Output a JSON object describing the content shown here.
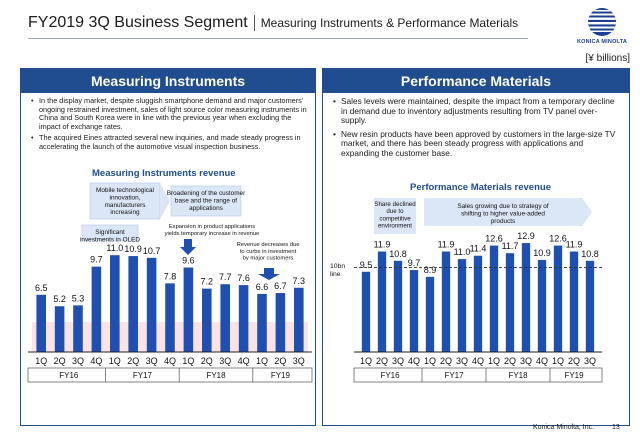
{
  "header": {
    "title": "FY2019 3Q Business Segment",
    "subtitle": "Measuring Instruments & Performance Materials",
    "logo_text": "KONICA MINOLTA",
    "unit": "[¥ billions]"
  },
  "left_panel": {
    "heading": "Measuring  Instruments",
    "bullets": [
      "In the display market, despite sluggish smartphone demand and major customers' ongoing restrained investment, sales of light source color measuring instruments in China and South Korea were in line with the previous year when excluding the impact of exchange rates.",
      "The acquired Eines attracted several new inquiries, and made steady progress in accelerating the launch of the automotive visual inspection business."
    ]
  },
  "right_panel": {
    "heading": "Performance Materials",
    "bullets": [
      "Sales levels were maintained, despite the impact from a temporary decline in demand due to inventory adjustments resulting from TV panel over-supply.",
      "New resin products have been approved by customers in the large-size TV market, and there has been steady progress with applications and expanding the customer base."
    ]
  },
  "chart_data": [
    {
      "type": "bar",
      "title": "Measuring Instruments revenue",
      "categories": [
        "1Q",
        "2Q",
        "3Q",
        "4Q",
        "1Q",
        "2Q",
        "3Q",
        "4Q",
        "1Q",
        "2Q",
        "3Q",
        "4Q",
        "1Q",
        "2Q",
        "3Q"
      ],
      "fiscal_years": [
        "FY16",
        "FY17",
        "FY18",
        "FY19"
      ],
      "values": [
        6.5,
        5.2,
        5.3,
        9.7,
        11.0,
        10.9,
        10.7,
        7.8,
        9.6,
        7.2,
        7.7,
        7.6,
        6.6,
        6.7,
        7.3
      ],
      "ylim": [
        0,
        12.5
      ],
      "bar_color": "#1f4fb0",
      "annotations": [
        "Mobile technological innovation, manufacturers increasing",
        "Broadening of the customer base and the range of applications",
        "Significant investments in OLED",
        "Expansion in product applications yields temporary increase in revenue",
        "Revenue decreases due to curbs in investment by major customers"
      ]
    },
    {
      "type": "bar",
      "title": "Performance Materials revenue",
      "categories": [
        "1Q",
        "2Q",
        "3Q",
        "4Q",
        "1Q",
        "2Q",
        "3Q",
        "4Q",
        "1Q",
        "2Q",
        "3Q",
        "4Q",
        "1Q",
        "2Q",
        "3Q"
      ],
      "fiscal_years": [
        "FY16",
        "FY17",
        "FY18",
        "FY19"
      ],
      "values": [
        9.5,
        11.9,
        10.8,
        9.7,
        8.9,
        11.9,
        11.0,
        11.4,
        12.6,
        11.7,
        12.9,
        10.9,
        12.6,
        11.9,
        10.8
      ],
      "reference_line": {
        "label": "10bn line",
        "value": 10
      },
      "ylim": [
        0,
        13.5
      ],
      "bar_color": "#1f4fb0",
      "annotations": [
        "Share declined due to competitive environment",
        "Sales growing due to strategy of shifting to higher value-added products"
      ]
    }
  ],
  "footer": {
    "company": "Konica Minolta, Inc.",
    "page": "13"
  }
}
